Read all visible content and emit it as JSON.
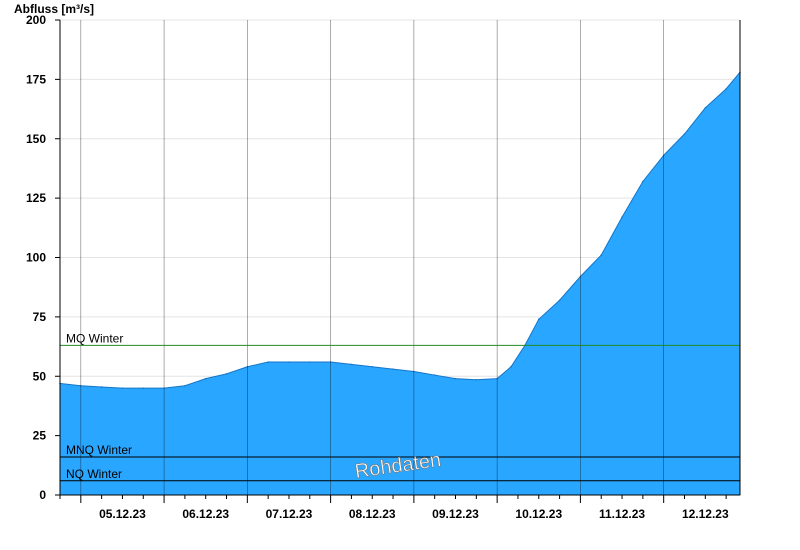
{
  "chart_data": {
    "type": "area",
    "ylabel": "Abfluss [m³/s]",
    "ylim": [
      0,
      200
    ],
    "yticks": [
      0,
      25,
      50,
      75,
      100,
      125,
      150,
      175,
      200
    ],
    "xlim": [
      "04.12.23 18:00",
      "12.12.23 22:00"
    ],
    "xticks": [
      "05.12.23",
      "06.12.23",
      "07.12.23",
      "08.12.23",
      "09.12.23",
      "10.12.23",
      "11.12.23",
      "12.12.23"
    ],
    "grid": true,
    "watermark": "Rohdaten",
    "colors": {
      "area": "#29a6ff",
      "mq_line": "#228b22",
      "reference_line": "#000000"
    },
    "reference_lines": [
      {
        "name": "MQ Winter",
        "value": 63
      },
      {
        "name": "MNQ Winter",
        "value": 16
      },
      {
        "name": "NQ Winter",
        "value": 6
      }
    ],
    "series": [
      {
        "x": [
          "04.12.23 18:00",
          "05.12.23 00:00",
          "05.12.23 06:00",
          "05.12.23 12:00",
          "05.12.23 18:00",
          "06.12.23 00:00",
          "06.12.23 06:00",
          "06.12.23 12:00",
          "06.12.23 18:00",
          "07.12.23 00:00",
          "07.12.23 06:00",
          "07.12.23 12:00",
          "07.12.23 18:00",
          "08.12.23 00:00",
          "08.12.23 06:00",
          "08.12.23 12:00",
          "08.12.23 18:00",
          "09.12.23 00:00",
          "09.12.23 06:00",
          "09.12.23 12:00",
          "09.12.23 18:00",
          "10.12.23 00:00",
          "10.12.23 04:00",
          "10.12.23 08:00",
          "10.12.23 12:00",
          "10.12.23 18:00",
          "11.12.23 00:00",
          "11.12.23 06:00",
          "11.12.23 12:00",
          "11.12.23 18:00",
          "12.12.23 00:00",
          "12.12.23 06:00",
          "12.12.23 12:00",
          "12.12.23 18:00",
          "12.12.23 22:00"
        ],
        "values": [
          47,
          46,
          45.5,
          45,
          45,
          45,
          46,
          49,
          51,
          54,
          56,
          56,
          56,
          56,
          55,
          54,
          53,
          52,
          50.5,
          49,
          48.5,
          49,
          54,
          63,
          74,
          82,
          92,
          101,
          117,
          132,
          143,
          152,
          163,
          171,
          178
        ]
      }
    ]
  }
}
